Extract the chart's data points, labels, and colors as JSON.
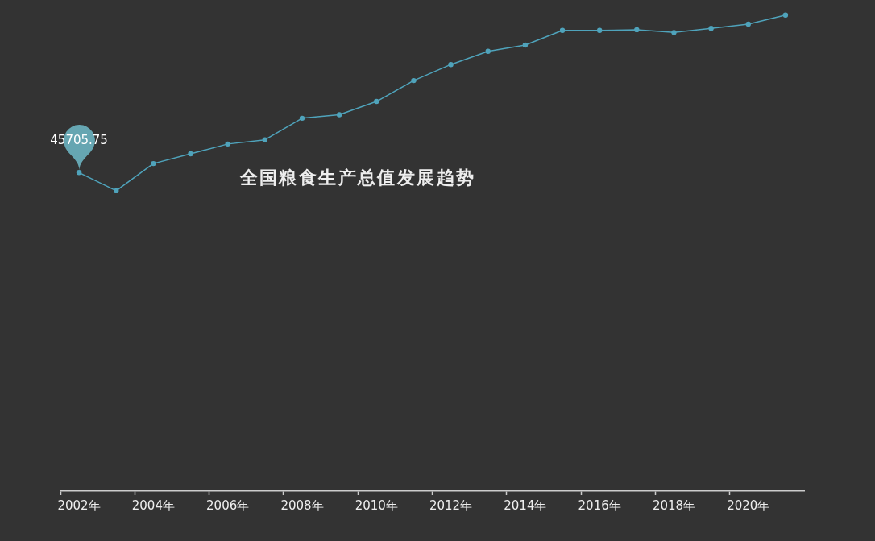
{
  "chart_data": {
    "type": "line",
    "title": "全国粮食生产总值发展趋势",
    "categories": [
      "2002年",
      null,
      "2004年",
      null,
      "2006年",
      null,
      "2008年",
      null,
      "2010年",
      null,
      "2012年",
      null,
      "2014年",
      null,
      "2016年",
      null,
      "2018年",
      null,
      "2020年",
      null
    ],
    "values": [
      45705.75,
      43100,
      47000,
      48400,
      49800,
      50400,
      53500,
      54000,
      55900,
      58900,
      61200,
      63100,
      64000,
      66100,
      66100,
      66200,
      65800,
      66400,
      67000,
      68300
    ],
    "value_labels": [
      "45705.75",
      null,
      null,
      null,
      null,
      null,
      null,
      null,
      null,
      null,
      null,
      null,
      null,
      null,
      null,
      null,
      null,
      null,
      null,
      null
    ],
    "color": "#4fa3bb",
    "ylim": [
      0,
      70000
    ],
    "tick_labels": "x",
    "marker": "circle"
  }
}
